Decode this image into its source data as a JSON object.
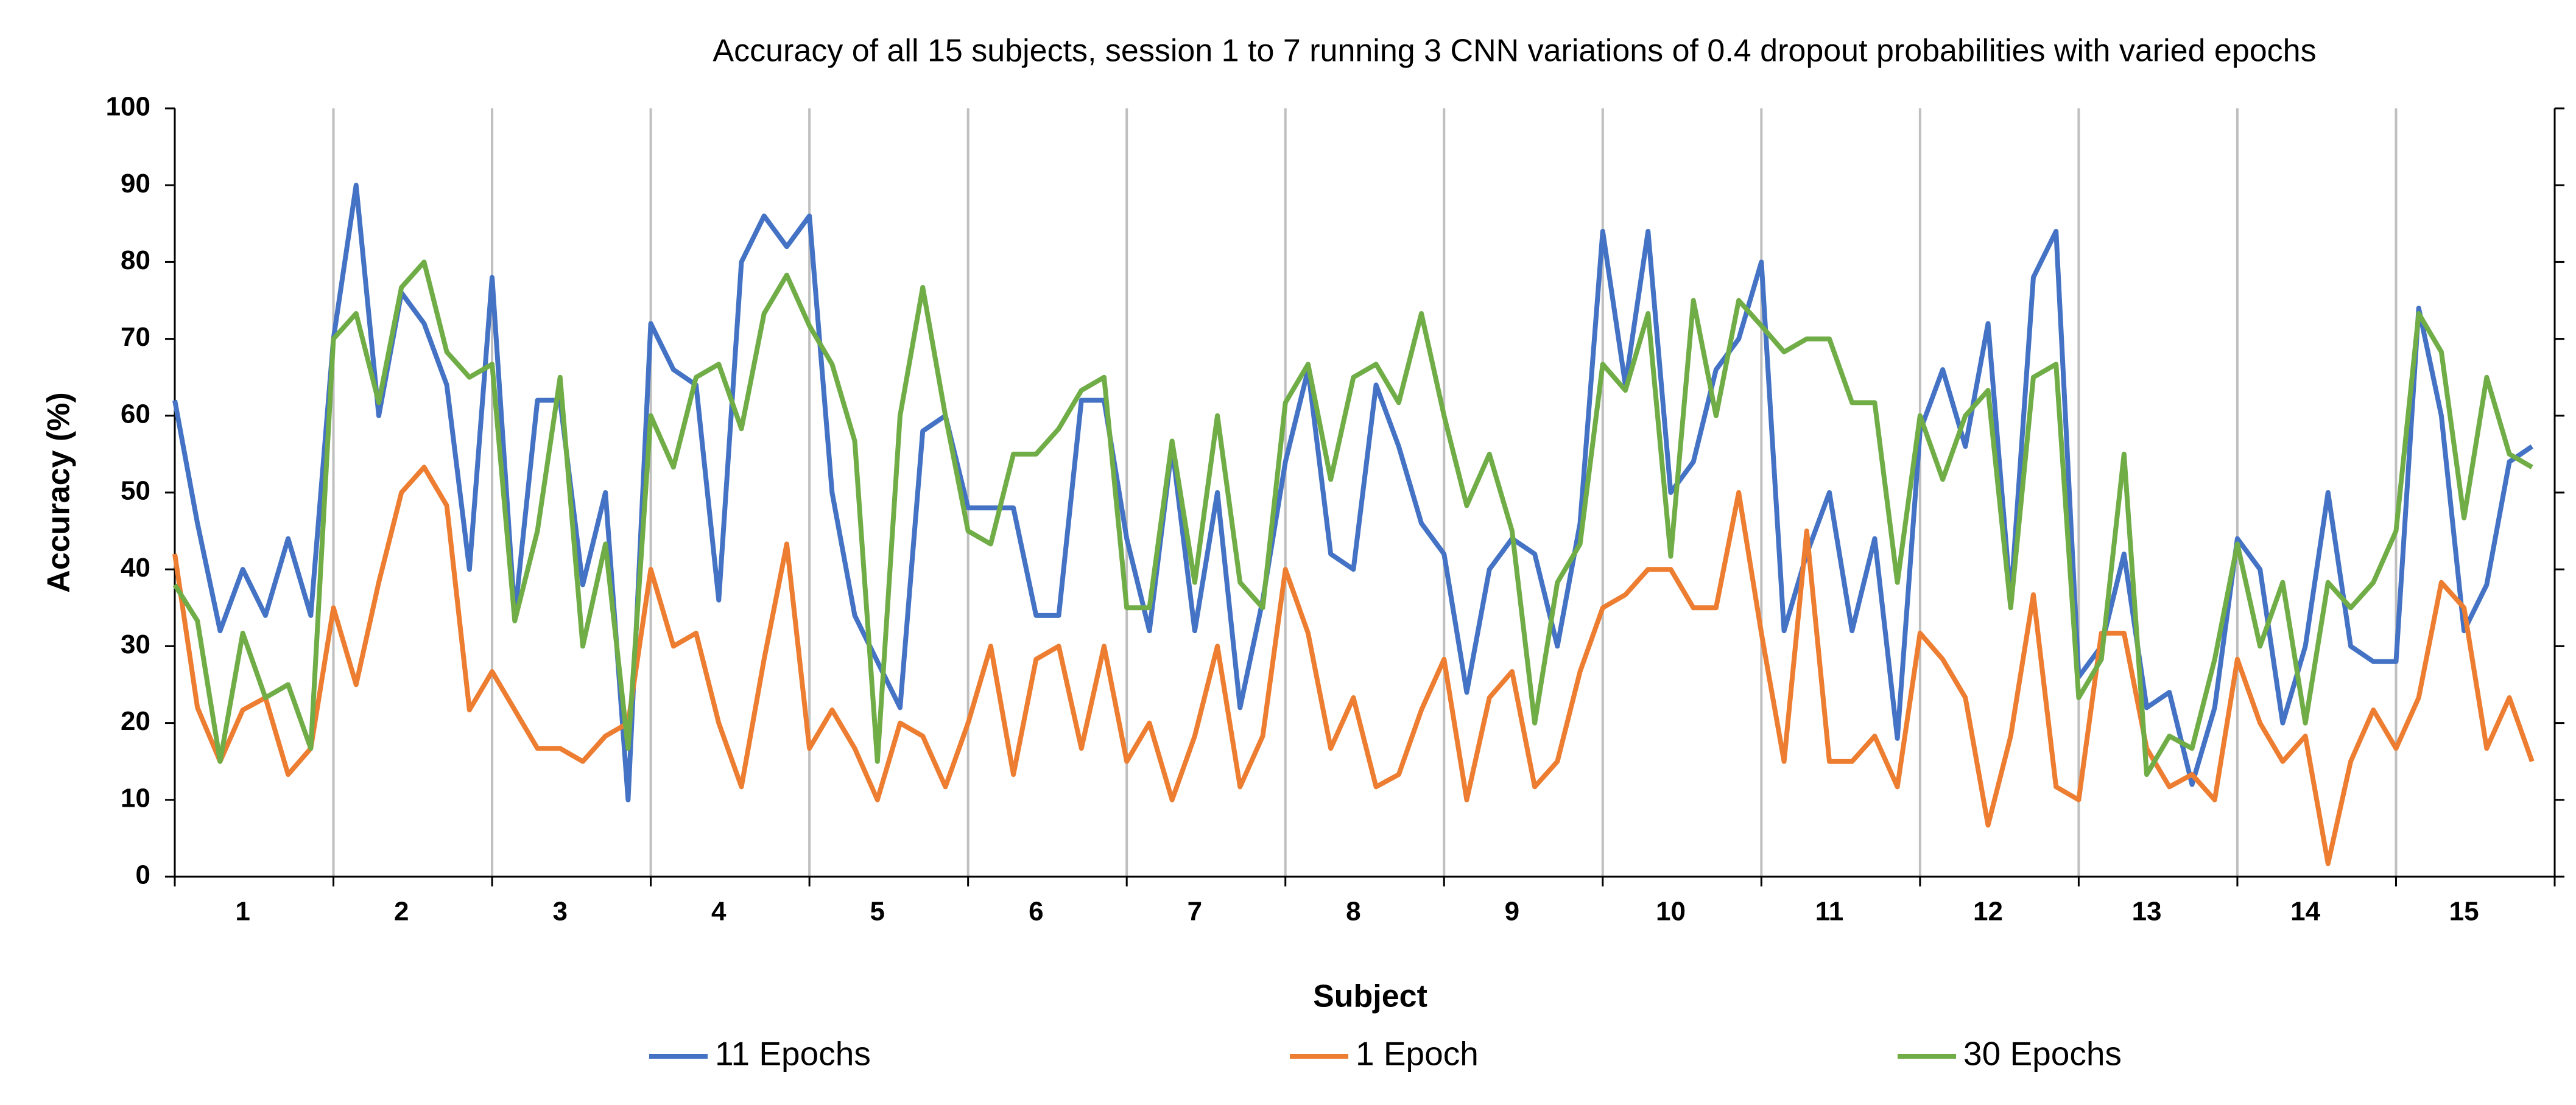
{
  "chart_data": {
    "type": "line",
    "title": "Accuracy of all 15 subjects, session 1 to 7 running 3 CNN variations of 0.4 dropout probabilities with varied epochs",
    "x_label": "Subject",
    "y_label": "Accuracy (%)",
    "categories": [
      null,
      null,
      null,
      "1",
      null,
      null,
      null,
      null,
      null,
      null,
      "2",
      null,
      null,
      null,
      null,
      null,
      null,
      "3",
      null,
      null,
      null,
      null,
      null,
      null,
      "4",
      null,
      null,
      null,
      null,
      null,
      null,
      "5",
      null,
      null,
      null,
      null,
      null,
      null,
      "6",
      null,
      null,
      null,
      null,
      null,
      null,
      "7",
      null,
      null,
      null,
      null,
      null,
      null,
      "8",
      null,
      null,
      null,
      null,
      null,
      null,
      "9",
      null,
      null,
      null,
      null,
      null,
      null,
      "10",
      null,
      null,
      null,
      null,
      null,
      null,
      "11",
      null,
      null,
      null,
      null,
      null,
      null,
      "12",
      null,
      null,
      null,
      null,
      null,
      null,
      "13",
      null,
      null,
      null,
      null,
      null,
      null,
      "14",
      null,
      null,
      null,
      null,
      null,
      null,
      "15",
      null,
      null,
      null
    ],
    "ylim": [
      0,
      100
    ],
    "yticks": [
      0,
      10,
      20,
      30,
      40,
      50,
      60,
      70,
      80,
      90,
      100
    ],
    "legend": "bottom",
    "series": [
      {
        "name": "11 Epochs",
        "color": "#4472c4",
        "values": [
          62,
          46,
          32,
          40,
          34,
          44,
          34,
          70,
          90,
          60,
          76,
          72,
          64,
          40,
          78,
          34,
          62,
          62,
          38,
          50,
          10,
          72,
          66,
          64,
          36,
          80,
          86,
          82,
          86,
          50,
          34,
          28,
          22,
          58,
          60,
          48,
          48,
          48,
          34,
          34,
          62,
          62,
          44,
          32,
          56,
          32,
          50,
          22,
          36,
          54,
          66,
          42,
          40,
          64,
          56,
          46,
          42,
          24,
          40,
          44,
          42,
          30,
          46,
          84,
          64,
          84,
          50,
          54,
          66,
          70,
          80,
          32,
          42,
          50,
          32,
          44,
          18,
          58,
          66,
          56,
          72,
          36,
          78,
          84,
          26,
          30,
          42,
          22,
          24,
          12,
          22,
          44,
          40,
          20,
          30,
          50,
          30,
          28,
          28,
          74,
          60,
          32,
          38,
          54,
          56
        ]
      },
      {
        "name": "1 Epoch",
        "color": "#ed7d31",
        "values": [
          42,
          22,
          15,
          21.7,
          23.3,
          13.3,
          16.7,
          35,
          25,
          38.3,
          50,
          53.3,
          48.3,
          21.7,
          26.7,
          21.7,
          16.7,
          16.7,
          15,
          18.3,
          20,
          40,
          30,
          31.7,
          20,
          11.7,
          28.3,
          43.3,
          16.7,
          21.7,
          16.7,
          10,
          20,
          18.3,
          11.7,
          20,
          30,
          13.3,
          28.3,
          30,
          16.7,
          30,
          15,
          20,
          10,
          18.3,
          30,
          11.7,
          18.3,
          40,
          31.7,
          16.7,
          23.3,
          11.7,
          13.3,
          21.7,
          28.3,
          10,
          23.3,
          26.7,
          11.7,
          15,
          26.7,
          35,
          36.7,
          40,
          40,
          35,
          35,
          50,
          31.7,
          15,
          45,
          15,
          15,
          18.3,
          11.7,
          31.7,
          28.3,
          23.3,
          6.7,
          18.3,
          36.7,
          11.7,
          10,
          31.7,
          31.7,
          16.7,
          11.7,
          13.3,
          10,
          28.3,
          20,
          15,
          18.3,
          1.7,
          15,
          21.7,
          16.7,
          23.3,
          38.3,
          35,
          16.7,
          23.3,
          15
        ]
      },
      {
        "name": "30 Epochs",
        "color": "#70ad47",
        "values": [
          38,
          33.3,
          15,
          31.7,
          23.3,
          25,
          16.7,
          70,
          73.3,
          61.7,
          76.7,
          80,
          68.3,
          65,
          66.7,
          33.3,
          45,
          65,
          30,
          43.3,
          16.7,
          60,
          53.3,
          65,
          66.7,
          58.3,
          73.3,
          78.3,
          71.7,
          66.7,
          56.7,
          15,
          60,
          76.7,
          60,
          45,
          43.3,
          55,
          55,
          58.3,
          63.3,
          65,
          35,
          35,
          56.7,
          38.3,
          60,
          38.3,
          35,
          61.7,
          66.7,
          51.7,
          65,
          66.7,
          61.7,
          73.3,
          60,
          48.3,
          55,
          45,
          20,
          38.3,
          43.3,
          66.7,
          63.3,
          73.3,
          41.7,
          75,
          60,
          75,
          71.7,
          68.3,
          70,
          70,
          61.7,
          61.7,
          38.3,
          60,
          51.7,
          60,
          63.3,
          35,
          65,
          66.7,
          23.3,
          28.3,
          55,
          13.3,
          18.3,
          16.7,
          28.3,
          43.3,
          30,
          38.3,
          20,
          38.3,
          35,
          38.3,
          45,
          73.3,
          68.3,
          46.7,
          65,
          55,
          53.3
        ]
      }
    ]
  }
}
